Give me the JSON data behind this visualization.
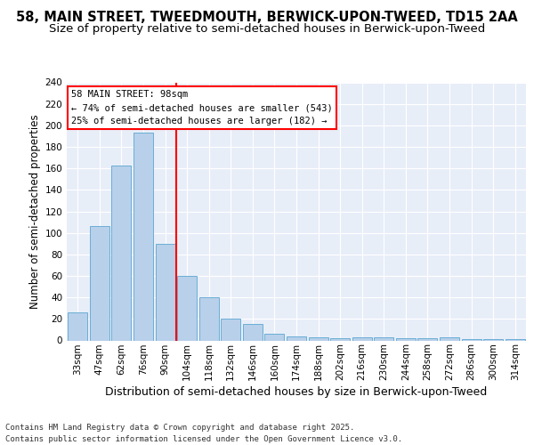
{
  "title1": "58, MAIN STREET, TWEEDMOUTH, BERWICK-UPON-TWEED, TD15 2AA",
  "title2": "Size of property relative to semi-detached houses in Berwick-upon-Tweed",
  "xlabel": "Distribution of semi-detached houses by size in Berwick-upon-Tweed",
  "ylabel": "Number of semi-detached properties",
  "categories": [
    "33sqm",
    "47sqm",
    "62sqm",
    "76sqm",
    "90sqm",
    "104sqm",
    "118sqm",
    "132sqm",
    "146sqm",
    "160sqm",
    "174sqm",
    "188sqm",
    "202sqm",
    "216sqm",
    "230sqm",
    "244sqm",
    "258sqm",
    "272sqm",
    "286sqm",
    "300sqm",
    "314sqm"
  ],
  "values": [
    26,
    106,
    163,
    193,
    90,
    60,
    40,
    20,
    15,
    6,
    4,
    3,
    2,
    3,
    3,
    2,
    2,
    3,
    1,
    1,
    1
  ],
  "bar_color": "#b8d0ea",
  "bar_edge_color": "#6aaed6",
  "vline_color": "red",
  "vline_xindex": 4.5,
  "annotation_line1": "58 MAIN STREET: 98sqm",
  "annotation_line2": "← 74% of semi-detached houses are smaller (543)",
  "annotation_line3": "25% of semi-detached houses are larger (182) →",
  "ylim": [
    0,
    240
  ],
  "yticks": [
    0,
    20,
    40,
    60,
    80,
    100,
    120,
    140,
    160,
    180,
    200,
    220,
    240
  ],
  "footer": "Contains HM Land Registry data © Crown copyright and database right 2025.\nContains public sector information licensed under the Open Government Licence v3.0.",
  "background_color": "#e8eef8",
  "grid_color": "white",
  "title1_fontsize": 10.5,
  "title2_fontsize": 9.5,
  "ylabel_fontsize": 8.5,
  "xlabel_fontsize": 9,
  "tick_fontsize": 7.5,
  "footer_fontsize": 6.5,
  "ann_fontsize": 7.5
}
